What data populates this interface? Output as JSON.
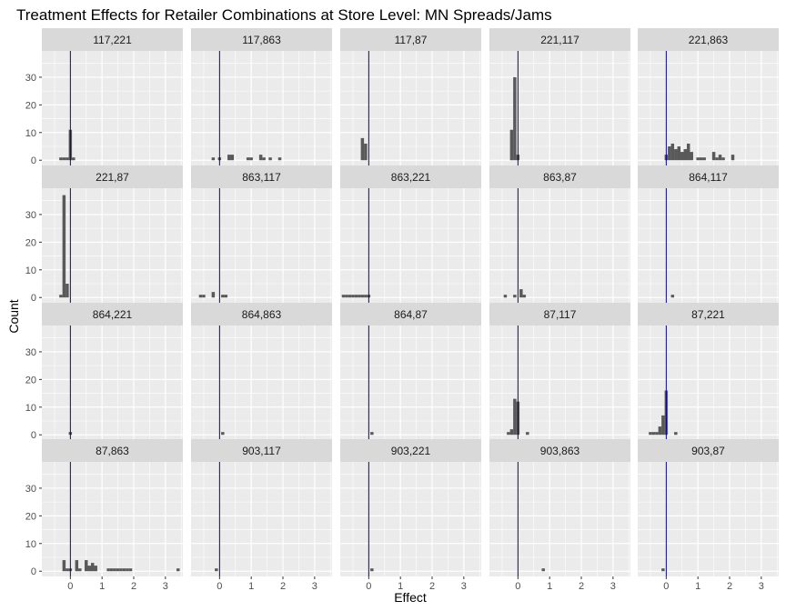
{
  "chart_data": {
    "type": "bar",
    "subtype": "faceted-histogram",
    "title": "Treatment Effects for Retailer Combinations at Store Level: MN Spreads/Jams",
    "xlabel": "Effect",
    "ylabel": "Count",
    "xlim": [
      -0.9,
      3.55
    ],
    "ylim": [
      -1.9,
      39.5
    ],
    "x_ticks": [
      "0",
      "1",
      "2",
      "3"
    ],
    "x_tick_values": [
      0,
      1,
      2,
      3
    ],
    "y_ticks": [
      "0",
      "10",
      "20",
      "30"
    ],
    "y_tick_values": [
      0,
      10,
      20,
      30
    ],
    "bin_width": 0.1,
    "reference_line": {
      "x": 0,
      "color": "#00008b"
    },
    "bar_color": "#595959",
    "panel_background": "#ebebeb",
    "strip_background": "#d9d9d9",
    "grid": true,
    "facets": [
      {
        "label": "117,221",
        "bins": [
          [
            -0.3,
            1
          ],
          [
            -0.2,
            1
          ],
          [
            -0.1,
            1
          ],
          [
            0,
            11
          ],
          [
            0.1,
            1
          ]
        ]
      },
      {
        "label": "117,863",
        "bins": [
          [
            -0.2,
            1
          ],
          [
            0,
            1
          ],
          [
            0.3,
            2
          ],
          [
            0.4,
            2
          ],
          [
            0.9,
            1
          ],
          [
            1.0,
            1
          ],
          [
            1.3,
            2
          ],
          [
            1.4,
            1
          ],
          [
            1.6,
            1
          ],
          [
            1.9,
            1
          ]
        ]
      },
      {
        "label": "117,87",
        "bins": [
          [
            -0.2,
            8
          ],
          [
            -0.1,
            6
          ]
        ]
      },
      {
        "label": "221,117",
        "bins": [
          [
            -0.2,
            11
          ],
          [
            -0.1,
            30
          ],
          [
            0,
            2
          ]
        ]
      },
      {
        "label": "221,863",
        "bins": [
          [
            0.0,
            2
          ],
          [
            0.1,
            5
          ],
          [
            0.2,
            6
          ],
          [
            0.3,
            4
          ],
          [
            0.4,
            5
          ],
          [
            0.5,
            3
          ],
          [
            0.6,
            4
          ],
          [
            0.7,
            6
          ],
          [
            0.8,
            3
          ],
          [
            1.0,
            1
          ],
          [
            1.1,
            1
          ],
          [
            1.2,
            1
          ],
          [
            1.5,
            3
          ],
          [
            1.6,
            1
          ],
          [
            1.7,
            2
          ],
          [
            1.8,
            1
          ],
          [
            2.1,
            2
          ]
        ]
      },
      {
        "label": "221,87",
        "bins": [
          [
            -0.3,
            1
          ],
          [
            -0.2,
            37
          ],
          [
            -0.1,
            5
          ]
        ]
      },
      {
        "label": "863,117",
        "bins": [
          [
            -0.6,
            1
          ],
          [
            -0.5,
            1
          ],
          [
            -0.2,
            2
          ],
          [
            0.1,
            1
          ],
          [
            0.2,
            1
          ]
        ]
      },
      {
        "label": "863,221",
        "bins": [
          [
            -0.8,
            1
          ],
          [
            -0.7,
            1
          ],
          [
            -0.6,
            1
          ],
          [
            -0.5,
            1
          ],
          [
            -0.4,
            1
          ],
          [
            -0.3,
            1
          ],
          [
            -0.2,
            1
          ],
          [
            -0.1,
            1
          ],
          [
            0,
            1
          ]
        ]
      },
      {
        "label": "863,87",
        "bins": [
          [
            -0.4,
            1
          ],
          [
            -0.1,
            1
          ],
          [
            0.1,
            3
          ],
          [
            0.2,
            1
          ]
        ]
      },
      {
        "label": "864,117",
        "bins": [
          [
            0.2,
            1
          ]
        ]
      },
      {
        "label": "864,221",
        "bins": [
          [
            0,
            1
          ]
        ]
      },
      {
        "label": "864,863",
        "bins": [
          [
            0.1,
            1
          ]
        ]
      },
      {
        "label": "864,87",
        "bins": [
          [
            0.1,
            1
          ]
        ]
      },
      {
        "label": "87,117",
        "bins": [
          [
            -0.3,
            1
          ],
          [
            -0.2,
            2
          ],
          [
            -0.1,
            13
          ],
          [
            0,
            12
          ],
          [
            0.3,
            1
          ]
        ]
      },
      {
        "label": "87,221",
        "bins": [
          [
            -0.5,
            1
          ],
          [
            -0.4,
            1
          ],
          [
            -0.3,
            1
          ],
          [
            -0.2,
            3
          ],
          [
            -0.1,
            7
          ],
          [
            0,
            16
          ],
          [
            0.3,
            1
          ]
        ]
      },
      {
        "label": "87,863",
        "bins": [
          [
            -0.2,
            4
          ],
          [
            -0.1,
            1
          ],
          [
            0.0,
            1
          ],
          [
            0.2,
            4
          ],
          [
            0.3,
            1
          ],
          [
            0.5,
            4
          ],
          [
            0.6,
            2
          ],
          [
            0.7,
            3
          ],
          [
            0.8,
            2
          ],
          [
            1.2,
            1
          ],
          [
            1.3,
            1
          ],
          [
            1.4,
            1
          ],
          [
            1.5,
            1
          ],
          [
            1.6,
            1
          ],
          [
            1.7,
            1
          ],
          [
            1.8,
            1
          ],
          [
            1.9,
            1
          ],
          [
            3.4,
            1
          ]
        ]
      },
      {
        "label": "903,117",
        "bins": [
          [
            -0.1,
            1
          ]
        ]
      },
      {
        "label": "903,221",
        "bins": [
          [
            0.1,
            1
          ]
        ]
      },
      {
        "label": "903,863",
        "bins": [
          [
            0.8,
            1
          ]
        ]
      },
      {
        "label": "903,87",
        "bins": [
          [
            -0.1,
            1
          ]
        ]
      }
    ]
  }
}
